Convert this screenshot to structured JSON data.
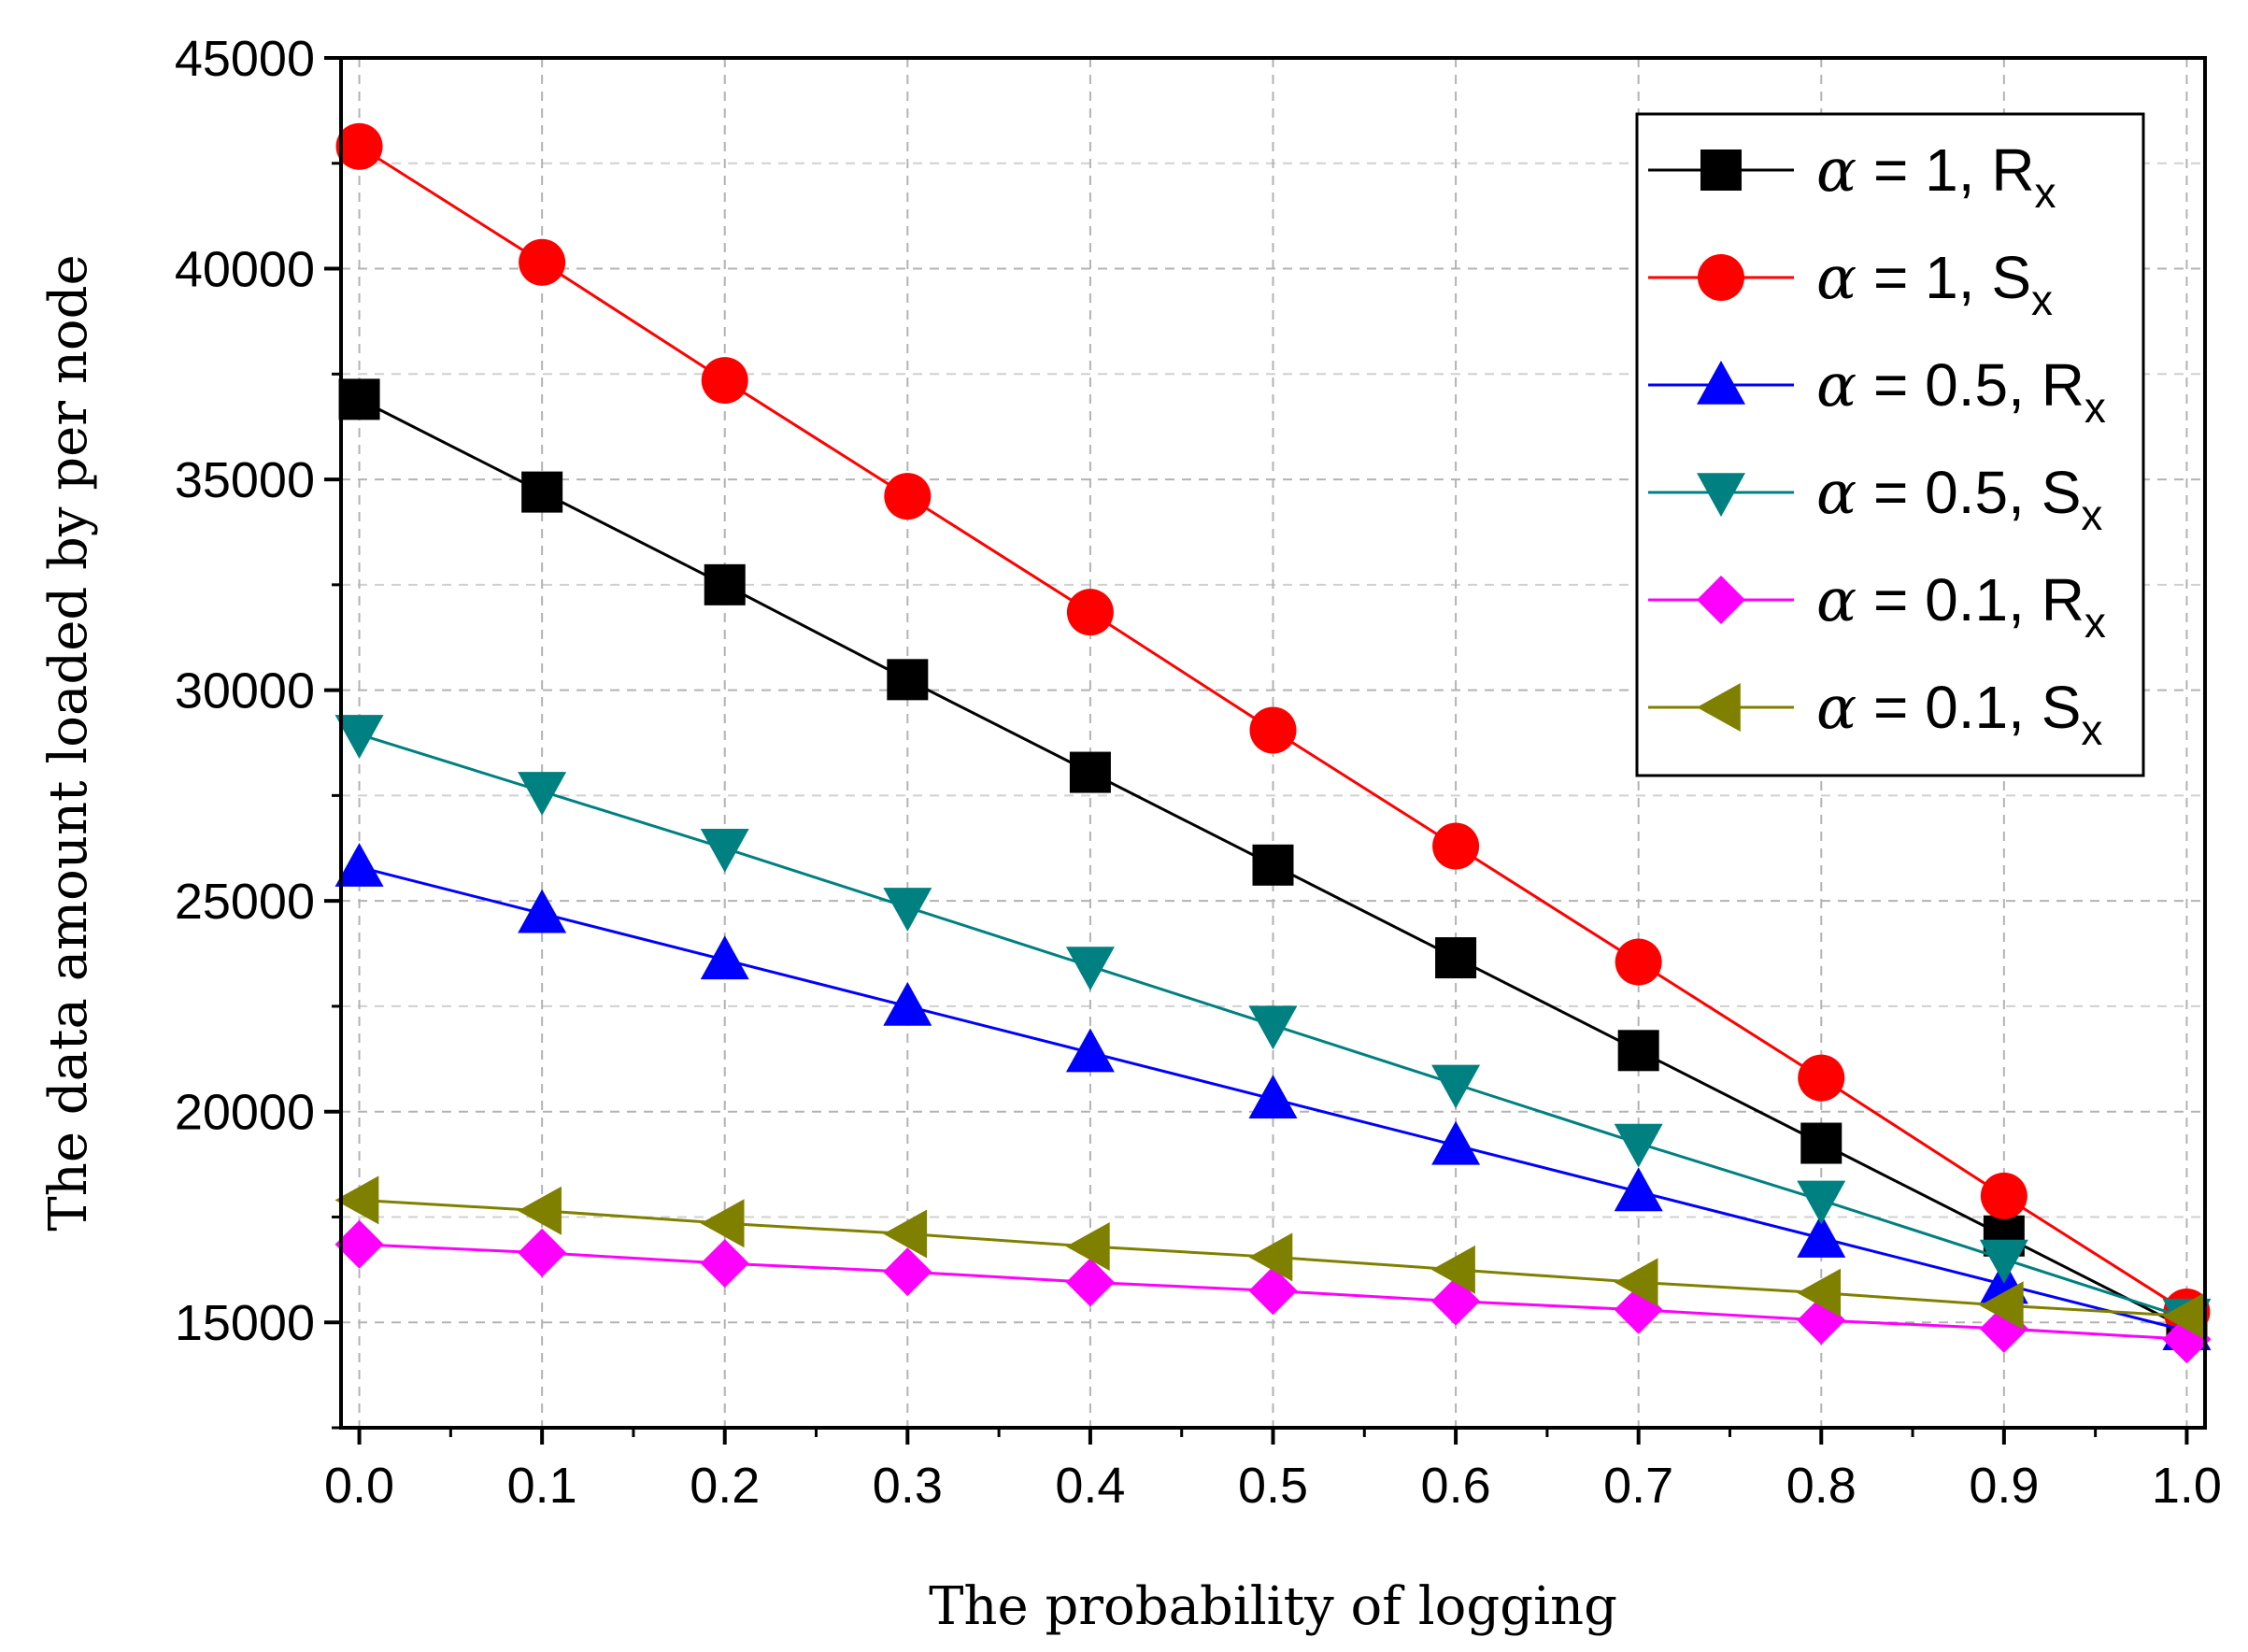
{
  "chart_data": {
    "type": "line",
    "title": "",
    "xlabel": "The probability of logging",
    "ylabel": "The data amount loaded by per node",
    "xlim": [
      -0.01,
      1.01
    ],
    "ylim": [
      12500,
      45000
    ],
    "x": [
      0.0,
      0.1,
      0.2,
      0.3,
      0.4,
      0.5,
      0.6,
      0.7,
      0.8,
      0.9,
      1.0
    ],
    "x_ticks": [
      0.0,
      0.1,
      0.2,
      0.3,
      0.4,
      0.5,
      0.6,
      0.7,
      0.8,
      0.9,
      1.0
    ],
    "x_tick_labels": [
      "0.0",
      "0.1",
      "0.2",
      "0.3",
      "0.4",
      "0.5",
      "0.6",
      "0.7",
      "0.8",
      "0.9",
      "1.0"
    ],
    "y_ticks": [
      15000,
      20000,
      25000,
      30000,
      35000,
      40000,
      45000
    ],
    "y_tick_labels": [
      "15000",
      "20000",
      "25000",
      "30000",
      "35000",
      "40000",
      "45000"
    ],
    "grid": true,
    "legend_position": "top-right",
    "series": [
      {
        "name": "α = 1, Rx",
        "alpha_symbol": "α",
        "label_main": " = 1, R",
        "label_sub": "x",
        "color": "#000000",
        "marker": "square",
        "values": [
          36900,
          34700,
          32500,
          30250,
          28050,
          25850,
          23650,
          21450,
          19250,
          17050,
          14850
        ]
      },
      {
        "name": "α = 1, Sx",
        "alpha_symbol": "α",
        "label_main": " = 1, S",
        "label_sub": "x",
        "color": "#ff0000",
        "marker": "circle",
        "values": [
          42900,
          40150,
          37350,
          34600,
          31850,
          29050,
          26300,
          23550,
          20800,
          18000,
          15250
        ]
      },
      {
        "name": "α = 0.5, Rx",
        "alpha_symbol": "α",
        "label_main": " = 0.5, R",
        "label_sub": "x",
        "color": "#0000ff",
        "marker": "triangle-up",
        "values": [
          25800,
          24700,
          23600,
          22500,
          21400,
          20300,
          19200,
          18100,
          17000,
          15900,
          14800
        ]
      },
      {
        "name": "α = 0.5, Sx",
        "alpha_symbol": "α",
        "label_main": " = 0.5, S",
        "label_sub": "x",
        "color": "#008080",
        "marker": "triangle-down",
        "values": [
          28950,
          27600,
          26250,
          24850,
          23450,
          22050,
          20650,
          19250,
          17900,
          16500,
          15100
        ]
      },
      {
        "name": "α = 0.1, Rx",
        "alpha_symbol": "α",
        "label_main": " = 0.1, R",
        "label_sub": "x",
        "color": "#ff00ff",
        "marker": "diamond",
        "values": [
          16850,
          16650,
          16400,
          16200,
          15950,
          15750,
          15500,
          15300,
          15050,
          14850,
          14600
        ]
      },
      {
        "name": "α = 0.1, Sx",
        "alpha_symbol": "α",
        "label_main": " = 0.1, S",
        "label_sub": "x",
        "color": "#808000",
        "marker": "triangle-left",
        "values": [
          17900,
          17650,
          17350,
          17100,
          16800,
          16550,
          16250,
          15950,
          15700,
          15400,
          15150
        ]
      }
    ]
  }
}
